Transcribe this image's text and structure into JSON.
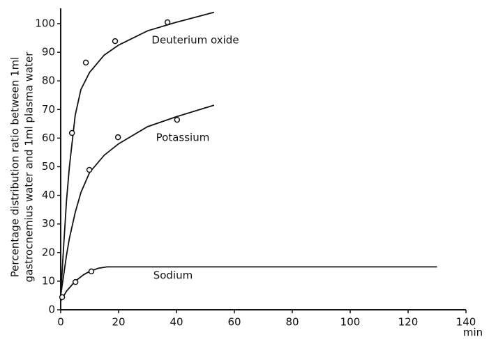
{
  "chart_data": {
    "type": "scatter",
    "y_label_lines": [
      "Percentage distribution ratio between 1ml",
      "gastrocnemius water and 1ml plasma water"
    ],
    "x_label": "min",
    "xlim": [
      0,
      140
    ],
    "xticks": [
      0,
      20,
      40,
      60,
      80,
      100,
      120,
      140
    ],
    "ylim": [
      0,
      100
    ],
    "yticks": [
      0,
      10,
      20,
      30,
      40,
      50,
      60,
      70,
      80,
      90,
      100
    ],
    "grid": false,
    "series": [
      {
        "name": "Deuterium oxide",
        "color": "#111111",
        "x": [
          3.9,
          8.7,
          18.8,
          36.9
        ],
        "values": [
          61.8,
          86.4,
          93.9,
          100.5
        ],
        "curve": {
          "x": [
            0,
            1,
            2,
            3,
            5,
            7,
            10,
            15,
            20,
            30,
            40,
            53
          ],
          "values": [
            5,
            22,
            38,
            50,
            68,
            77,
            83,
            89,
            92.5,
            97.5,
            100.5,
            104
          ]
        }
      },
      {
        "name": "Potassium",
        "color": "#111111",
        "x": [
          9.9,
          19.8,
          40.2
        ],
        "values": [
          48.9,
          60.3,
          66.4
        ],
        "curve": {
          "x": [
            0,
            1,
            2,
            3,
            5,
            7,
            10,
            15,
            20,
            30,
            40,
            53
          ],
          "values": [
            5,
            12,
            19,
            25,
            34,
            41,
            48,
            54,
            58,
            64,
            67.5,
            71.5
          ]
        }
      },
      {
        "name": "Sodium",
        "color": "#111111",
        "x": [
          0.5,
          5.1,
          10.6
        ],
        "values": [
          4.4,
          9.7,
          13.4
        ],
        "curve": {
          "x": [
            0,
            2,
            5,
            8,
            10,
            13,
            16,
            63,
            130
          ],
          "values": [
            3,
            6.5,
            10,
            12.3,
            13.4,
            14.5,
            15,
            15,
            15
          ]
        }
      }
    ]
  }
}
